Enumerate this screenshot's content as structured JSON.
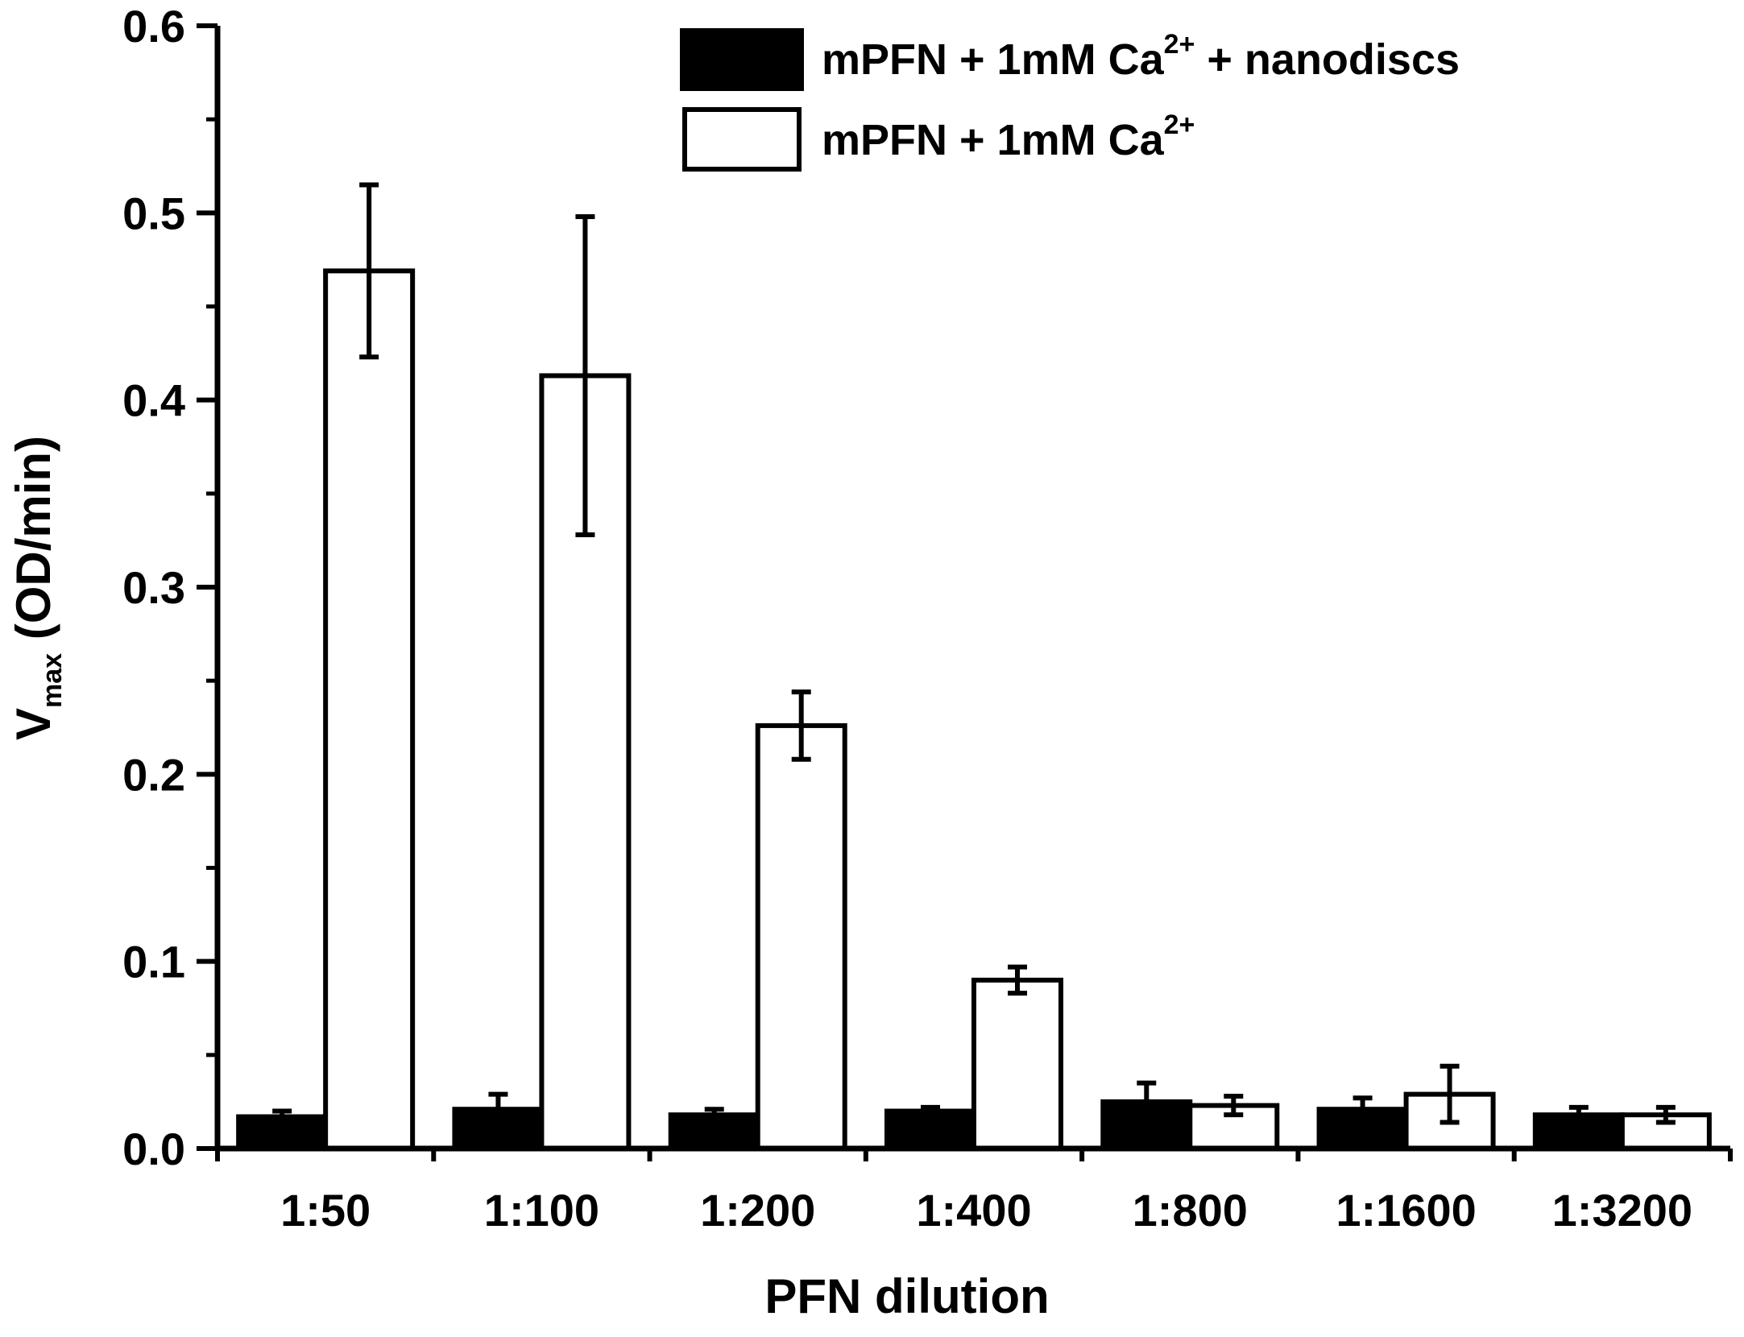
{
  "chart_data": {
    "type": "bar",
    "xlabel": "PFN dilution",
    "ylabel": {
      "main": "V",
      "subscript": "max",
      "unit": " (OD/min)"
    },
    "categories": [
      "1:50",
      "1:100",
      "1:200",
      "1:400",
      "1:800",
      "1:1600",
      "1:3200"
    ],
    "ylim": [
      0,
      0.6
    ],
    "yticks": [
      "0.0",
      "0.1",
      "0.2",
      "0.3",
      "0.4",
      "0.5",
      "0.6"
    ],
    "grid": false,
    "legend_position": "top-right",
    "series": [
      {
        "name": {
          "text": "mPFN + 1mM Ca",
          "sup": "2+",
          "suffix": " + nanodiscs"
        },
        "fill": "#000000",
        "values": [
          0.017,
          0.021,
          0.018,
          0.02,
          0.025,
          0.021,
          0.018
        ],
        "errors": [
          0.003,
          0.008,
          0.003,
          0.002,
          0.01,
          0.006,
          0.004
        ]
      },
      {
        "name": {
          "text": "mPFN + 1mM Ca",
          "sup": "2+",
          "suffix": ""
        },
        "fill": "#ffffff",
        "values": [
          0.469,
          0.413,
          0.226,
          0.09,
          0.023,
          0.029,
          0.018
        ],
        "errors": [
          0.046,
          0.085,
          0.018,
          0.007,
          0.005,
          0.015,
          0.004
        ]
      }
    ]
  }
}
